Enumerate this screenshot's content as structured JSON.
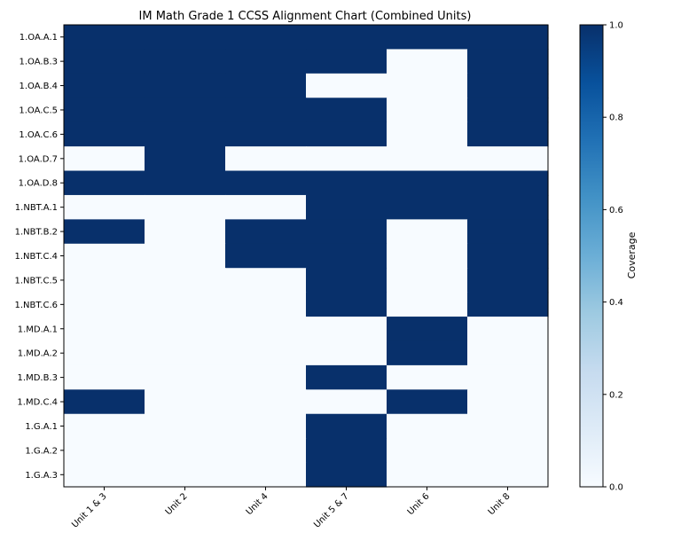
{
  "chart_data": {
    "type": "heatmap",
    "title": "IM Math Grade 1 CCSS Alignment Chart (Combined Units)",
    "xlabel": "",
    "ylabel": "",
    "columns": [
      "Unit 1 & 3",
      "Unit 2",
      "Unit 4",
      "Unit 5 & 7",
      "Unit 6",
      "Unit 8"
    ],
    "rows": [
      "1.OA.A.1",
      "1.OA.B.3",
      "1.OA.B.4",
      "1.OA.C.5",
      "1.OA.C.6",
      "1.OA.D.7",
      "1.OA.D.8",
      "1.NBT.A.1",
      "1.NBT.B.2",
      "1.NBT.C.4",
      "1.NBT.C.5",
      "1.NBT.C.6",
      "1.MD.A.1",
      "1.MD.A.2",
      "1.MD.B.3",
      "1.MD.C.4",
      "1.G.A.1",
      "1.G.A.2",
      "1.G.A.3"
    ],
    "values": [
      [
        1,
        1,
        1,
        1,
        1,
        1
      ],
      [
        1,
        1,
        1,
        1,
        0,
        1
      ],
      [
        1,
        1,
        1,
        0,
        0,
        1
      ],
      [
        1,
        1,
        1,
        1,
        0,
        1
      ],
      [
        1,
        1,
        1,
        1,
        0,
        1
      ],
      [
        0,
        1,
        0,
        0,
        0,
        0
      ],
      [
        1,
        1,
        1,
        1,
        1,
        1
      ],
      [
        0,
        0,
        0,
        1,
        1,
        1
      ],
      [
        1,
        0,
        1,
        1,
        0,
        1
      ],
      [
        0,
        0,
        1,
        1,
        0,
        1
      ],
      [
        0,
        0,
        0,
        1,
        0,
        1
      ],
      [
        0,
        0,
        0,
        1,
        0,
        1
      ],
      [
        0,
        0,
        0,
        0,
        1,
        0
      ],
      [
        0,
        0,
        0,
        0,
        1,
        0
      ],
      [
        0,
        0,
        0,
        1,
        0,
        0
      ],
      [
        1,
        0,
        0,
        0,
        1,
        0
      ],
      [
        0,
        0,
        0,
        1,
        0,
        0
      ],
      [
        0,
        0,
        0,
        1,
        0,
        0
      ],
      [
        0,
        0,
        0,
        1,
        0,
        0
      ]
    ],
    "colormap": "Blues",
    "color_low": "#f7fbff",
    "color_high": "#08306b",
    "vmin": 0,
    "vmax": 1,
    "colorbar": {
      "label": "Coverage",
      "ticks": [
        "0.0",
        "0.2",
        "0.4",
        "0.6",
        "0.8",
        "1.0"
      ],
      "tick_values": [
        0,
        0.2,
        0.4,
        0.6,
        0.8,
        1.0
      ]
    },
    "grid": false
  }
}
